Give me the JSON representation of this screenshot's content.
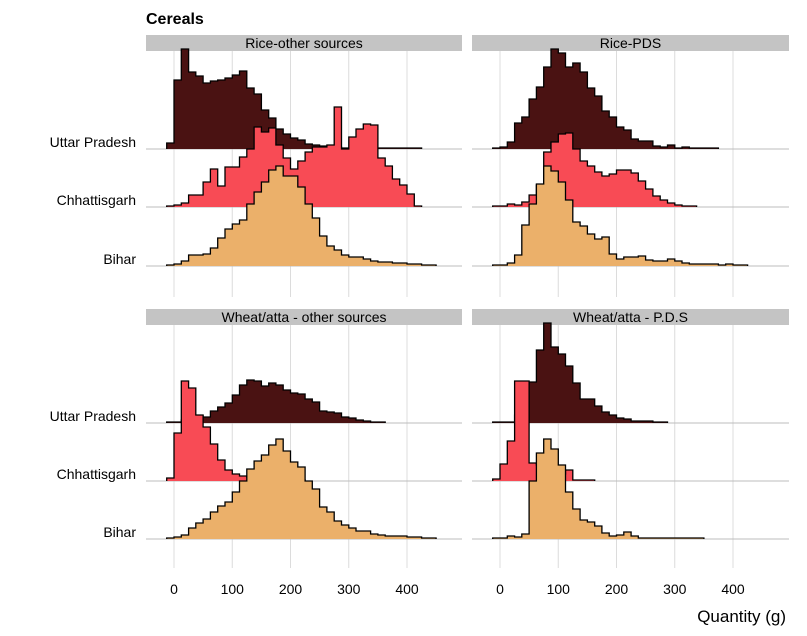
{
  "chart_data": {
    "type": "area",
    "subtype": "ridgeline-histogram",
    "title": "Cereals",
    "xlabel": "Quantity (g)",
    "ylabel": "",
    "xlim": [
      -40,
      475
    ],
    "x_ticks": [
      0,
      100,
      200,
      300,
      400
    ],
    "grid": "vertical",
    "legend": "none",
    "bin_width": 12.5,
    "rows": [
      "Uttar Pradesh",
      "Chhattisgarh",
      "Bihar"
    ],
    "colors": {
      "Uttar Pradesh": "#4a1212",
      "Chhattisgarh": "#f84b55",
      "Bihar": "#ebb06a"
    },
    "panels": [
      {
        "name": "Rice-other sources",
        "series": [
          {
            "row": "Bihar",
            "bin_start": -12.5,
            "values": [
              0.01,
              0.02,
              0.05,
              0.11,
              0.11,
              0.12,
              0.18,
              0.28,
              0.37,
              0.42,
              0.46,
              0.62,
              0.74,
              0.84,
              0.96,
              1.0,
              0.9,
              0.9,
              0.79,
              0.62,
              0.48,
              0.3,
              0.2,
              0.16,
              0.11,
              0.09,
              0.09,
              0.07,
              0.05,
              0.04,
              0.04,
              0.03,
              0.03,
              0.02,
              0.02,
              0.01,
              0.01
            ]
          },
          {
            "row": "Chhattisgarh",
            "bin_start": -12.5,
            "values": [
              0.01,
              0.02,
              0.04,
              0.12,
              0.12,
              0.25,
              0.38,
              0.21,
              0.4,
              0.4,
              0.5,
              0.58,
              0.8,
              0.75,
              0.79,
              0.62,
              0.49,
              0.38,
              0.46,
              0.55,
              0.6,
              0.6,
              0.62,
              1.0,
              0.58,
              0.7,
              0.78,
              0.83,
              0.82,
              0.49,
              0.41,
              0.28,
              0.22,
              0.13,
              0.01
            ]
          },
          {
            "row": "Uttar Pradesh",
            "bin_start": -12.5,
            "values": [
              0.06,
              0.69,
              1.0,
              0.77,
              0.73,
              0.66,
              0.68,
              0.69,
              0.71,
              0.74,
              0.78,
              0.61,
              0.55,
              0.39,
              0.31,
              0.2,
              0.15,
              0.11,
              0.09,
              0.05,
              0.04,
              0.03,
              0.02,
              0.02,
              0.01,
              0.01,
              0.01,
              0.01,
              0.01,
              0.01,
              0.01,
              0.01,
              0.01,
              0.01,
              0.01
            ]
          }
        ]
      },
      {
        "name": "Rice-PDS",
        "series": [
          {
            "row": "Bihar",
            "bin_start": -12.5,
            "values": [
              0.01,
              0.01,
              0.03,
              0.11,
              0.41,
              0.62,
              0.82,
              1.0,
              0.95,
              0.84,
              0.66,
              0.44,
              0.4,
              0.32,
              0.27,
              0.29,
              0.12,
              0.07,
              0.09,
              0.09,
              0.1,
              0.06,
              0.05,
              0.05,
              0.07,
              0.05,
              0.03,
              0.02,
              0.02,
              0.02,
              0.02,
              0.01,
              0.02,
              0.01,
              0.01
            ]
          },
          {
            "row": "Chhattisgarh",
            "bin_start": -12.5,
            "values": [
              0.01,
              0.01,
              0.03,
              0.02,
              0.05,
              0.12,
              0.22,
              0.55,
              0.65,
              0.73,
              0.74,
              0.58,
              0.46,
              0.41,
              0.35,
              0.31,
              0.33,
              0.37,
              0.37,
              0.34,
              0.26,
              0.18,
              0.11,
              0.07,
              0.04,
              0.02,
              0.01,
              0.01
            ]
          },
          {
            "row": "Uttar Pradesh",
            "bin_start": -12.5,
            "values": [
              0.01,
              0.02,
              0.07,
              0.26,
              0.32,
              0.5,
              0.62,
              0.82,
              1.0,
              0.96,
              0.82,
              0.86,
              0.77,
              0.61,
              0.53,
              0.38,
              0.32,
              0.22,
              0.19,
              0.1,
              0.08,
              0.08,
              0.03,
              0.02,
              0.04,
              0.01,
              0.02,
              0.01,
              0.01,
              0.01,
              0.01
            ]
          }
        ]
      },
      {
        "name": "Wheat/atta - other sources",
        "series": [
          {
            "row": "Bihar",
            "bin_start": -12.5,
            "values": [
              0.01,
              0.02,
              0.04,
              0.11,
              0.16,
              0.2,
              0.27,
              0.33,
              0.37,
              0.47,
              0.58,
              0.7,
              0.78,
              0.84,
              0.94,
              1.0,
              0.88,
              0.77,
              0.72,
              0.58,
              0.5,
              0.32,
              0.27,
              0.18,
              0.14,
              0.11,
              0.08,
              0.08,
              0.05,
              0.04,
              0.03,
              0.03,
              0.03,
              0.02,
              0.02,
              0.01,
              0.01
            ]
          },
          {
            "row": "Chhattisgarh",
            "bin_start": -12.5,
            "values": [
              0.03,
              0.48,
              1.0,
              0.93,
              0.66,
              0.54,
              0.37,
              0.21,
              0.11,
              0.07,
              0.05,
              0.04,
              0.03,
              0.02,
              0.02,
              0.01,
              0.01,
              0.01,
              0.01
            ]
          },
          {
            "row": "Uttar Pradesh",
            "bin_start": -12.5,
            "values": [
              0.01,
              0.01,
              0.03,
              0.04,
              0.07,
              0.06,
              0.12,
              0.16,
              0.2,
              0.28,
              0.38,
              0.43,
              0.42,
              0.37,
              0.4,
              0.38,
              0.33,
              0.3,
              0.29,
              0.24,
              0.21,
              0.12,
              0.11,
              0.1,
              0.06,
              0.05,
              0.03,
              0.02,
              0.01,
              0.01
            ]
          }
        ]
      },
      {
        "name": "Wheat/atta - P.D.S",
        "series": [
          {
            "row": "Bihar",
            "bin_start": -12.5,
            "values": [
              0.01,
              0.01,
              0.03,
              0.02,
              0.05,
              0.58,
              0.86,
              1.0,
              0.9,
              0.74,
              0.47,
              0.3,
              0.19,
              0.17,
              0.13,
              0.06,
              0.03,
              0.04,
              0.07,
              0.03,
              0.01,
              0.01,
              0.01,
              0.01,
              0.01,
              0.01,
              0.01,
              0.01,
              0.01
            ]
          },
          {
            "row": "Chhattisgarh",
            "bin_start": -12.5,
            "values": [
              0.02,
              0.17,
              0.4,
              1.0,
              1.0,
              0.18,
              0.16,
              0.12,
              0.11,
              0.07,
              0.11,
              0.01,
              0.01,
              0.01
            ]
          },
          {
            "row": "Uttar Pradesh",
            "bin_start": -12.5,
            "values": [
              0.01,
              0.01,
              0.01,
              0.08,
              0.39,
              0.41,
              0.73,
              1.0,
              0.76,
              0.69,
              0.57,
              0.4,
              0.24,
              0.24,
              0.17,
              0.11,
              0.08,
              0.05,
              0.04,
              0.02,
              0.02,
              0.02,
              0.01,
              0.01
            ]
          }
        ]
      }
    ]
  }
}
